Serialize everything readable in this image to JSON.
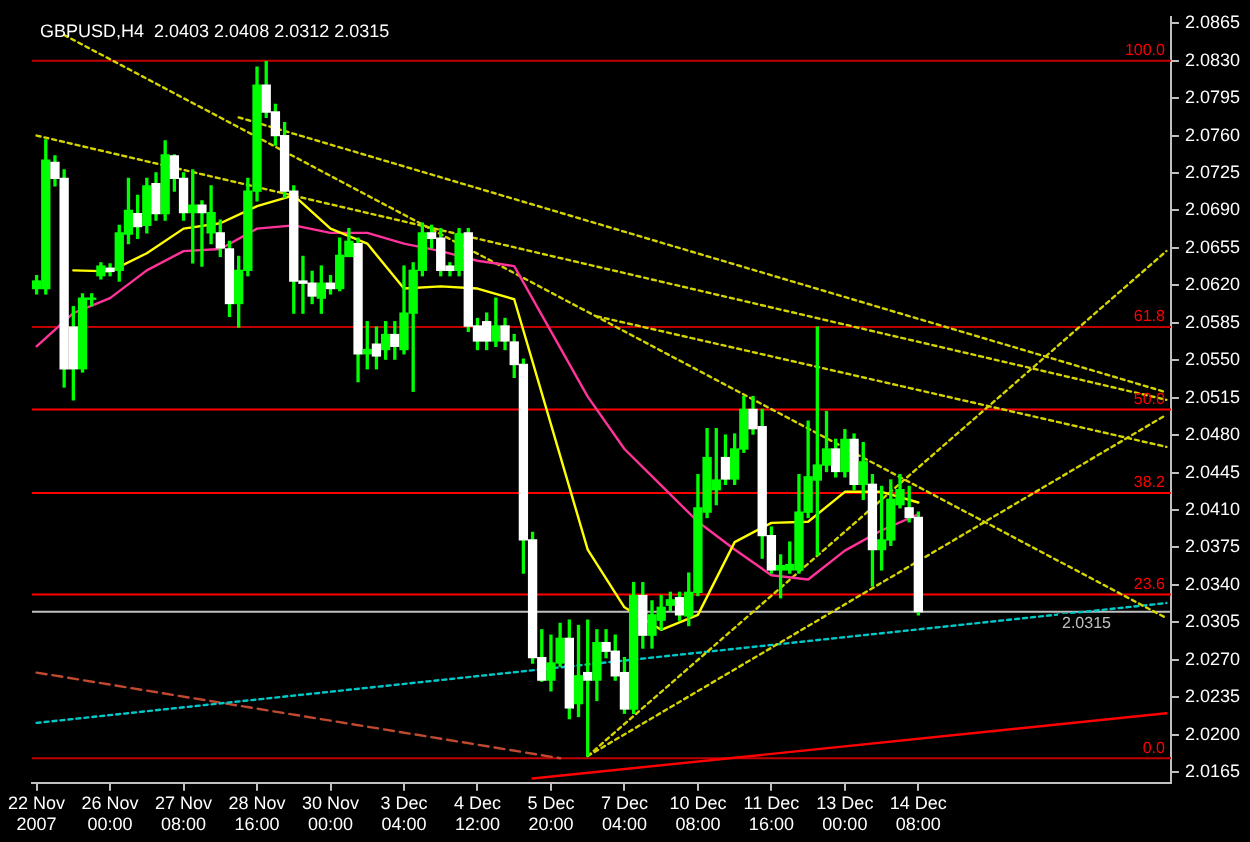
{
  "chart_data": {
    "type": "candlestick",
    "title": "GBPUSD,H4  2.0403 2.0408 2.0312 2.0315",
    "color": "#00ff00",
    "marker": "none",
    "colors": [
      "#00ff00",
      "#00ff00",
      "#ffffff",
      "#ffffff",
      "#ffffff",
      "#00ff00",
      "#00ff00",
      "#00ff00",
      "#ffffff",
      "#00ff00",
      "#00ff00",
      "#ffffff",
      "#00ff00",
      "#ffffff",
      "#00ff00",
      "#ffffff",
      "#ffffff",
      "#00ff00",
      "#ffffff",
      "#00ff00",
      "#ffffff",
      "#ffffff",
      "#00ff00",
      "#00ff00",
      "#00ff00",
      "#ffffff",
      "#ffffff",
      "#ffffff",
      "#ffffff",
      "#ffffff",
      "#ffffff",
      "#00ff00",
      "#ffffff",
      "#00ff00",
      "#00ff00",
      "#ffffff",
      "#00ff00",
      "#ffffff",
      "#00ff00",
      "#ffffff",
      "#00ff00",
      "#00ff00",
      "#00ff00",
      "#ffffff",
      "#ffffff",
      "#ffffff",
      "#00ff00",
      "#ffffff",
      "#ffffff",
      "#ffffff",
      "#00ff00",
      "#ffffff",
      "#ffffff",
      "#ffffff",
      "#ffffff",
      "#ffffff",
      "#00ff00",
      "#00ff00",
      "#ffffff",
      "#00ff00",
      "#ffffff",
      "#00ff00",
      "#ffffff",
      "#ffffff",
      "#ffffff",
      "#00ff00",
      "#ffffff",
      "#00ff00",
      "#00ff00",
      "#00ff00",
      "#ffffff",
      "#00ff00",
      "#00ff00",
      "#00ff00",
      "#00ff00",
      "#ffffff",
      "#00ff00",
      "#00ff00",
      "#ffffff",
      "#ffffff",
      "#ffffff",
      "#00ff00",
      "#00ff00",
      "#00ff00",
      "#00ff00",
      "#00ff00",
      "#00ff00",
      "#ffffff",
      "#00ff00",
      "#ffffff",
      "#00ff00",
      "#ffffff",
      "#00ff00",
      "#00ff00",
      "#00ff00",
      "#ffffff",
      "#ffffff",
      null,
      null,
      null,
      null,
      null,
      null,
      null,
      null,
      null,
      null,
      null,
      null,
      null,
      null,
      null,
      null,
      null,
      null,
      null,
      null,
      null,
      null,
      null,
      null,
      null,
      null,
      null
    ],
    "categories": [
      "22 Nov 2007",
      null,
      null,
      null,
      null,
      null,
      null,
      null,
      "26 Nov 00:00",
      null,
      null,
      null,
      null,
      null,
      null,
      null,
      "27 Nov 08:00",
      null,
      null,
      null,
      null,
      null,
      null,
      null,
      "28 Nov 16:00",
      null,
      null,
      null,
      null,
      null,
      null,
      null,
      "30 Nov 00:00",
      null,
      null,
      null,
      null,
      null,
      null,
      null,
      "3 Dec 04:00",
      null,
      null,
      null,
      null,
      null,
      null,
      null,
      "4 Dec 12:00",
      null,
      null,
      null,
      null,
      null,
      null,
      null,
      "5 Dec 20:00",
      null,
      null,
      null,
      null,
      null,
      null,
      null,
      "7 Dec 04:00",
      null,
      null,
      null,
      null,
      null,
      null,
      null,
      "10 Dec 08:00",
      null,
      null,
      null,
      null,
      null,
      null,
      null,
      "11 Dec 16:00",
      null,
      null,
      null,
      null,
      null,
      null,
      null,
      "13 Dec 00:00",
      null,
      null,
      null,
      null,
      null,
      null,
      null,
      "14 Dec 08:00",
      null,
      null,
      null,
      null,
      null,
      null,
      null,
      null,
      null,
      null,
      null,
      null,
      null,
      null,
      null,
      null,
      null,
      null,
      null,
      null,
      null,
      null,
      null,
      null,
      null,
      null,
      null
    ],
    "ohlc": [
      [
        2.0617,
        2.0629,
        2.0612,
        2.0624
      ],
      [
        2.0617,
        2.0756,
        2.0612,
        2.0737
      ],
      [
        2.0735,
        2.0741,
        2.0713,
        2.072
      ],
      [
        2.072,
        2.0728,
        2.0525,
        2.0542
      ],
      [
        2.0581,
        2.06,
        2.0513,
        2.0542
      ],
      [
        2.0542,
        2.0612,
        2.0539,
        2.0608
      ],
      [
        2.0607,
        2.0612,
        2.0601,
        2.0608
      ],
      [
        2.0629,
        2.0641,
        2.0626,
        2.0638
      ],
      [
        2.0636,
        2.064,
        2.0629,
        2.0633
      ],
      [
        2.0634,
        2.0676,
        2.0624,
        2.0669
      ],
      [
        2.0668,
        2.072,
        2.0659,
        2.069
      ],
      [
        2.0687,
        2.0704,
        2.0664,
        2.0675
      ],
      [
        2.0676,
        2.072,
        2.0669,
        2.0713
      ],
      [
        2.0715,
        2.0725,
        2.0681,
        2.0687
      ],
      [
        2.0687,
        2.0755,
        2.0681,
        2.0742
      ],
      [
        2.0741,
        2.0742,
        2.0708,
        2.072
      ],
      [
        2.072,
        2.0725,
        2.0681,
        2.0688
      ],
      [
        2.0688,
        2.0728,
        2.0641,
        2.0695
      ],
      [
        2.0695,
        2.0699,
        2.0638,
        2.0688
      ],
      [
        2.0669,
        2.0713,
        2.0659,
        2.0688
      ],
      [
        2.0669,
        2.0681,
        2.0647,
        2.0655
      ],
      [
        2.0654,
        2.0661,
        2.0591,
        2.0603
      ],
      [
        2.0603,
        2.0647,
        2.0581,
        2.0634
      ],
      [
        2.0634,
        2.072,
        2.0629,
        2.0708
      ],
      [
        2.0708,
        2.0824,
        2.0699,
        2.0807
      ],
      [
        2.0807,
        2.0829,
        2.0777,
        2.0782
      ],
      [
        2.0782,
        2.0789,
        2.0751,
        2.076
      ],
      [
        2.076,
        2.0772,
        2.0702,
        2.0708
      ],
      [
        2.0708,
        2.0713,
        2.0594,
        2.0624
      ],
      [
        2.0624,
        2.0647,
        2.0594,
        2.0622
      ],
      [
        2.0622,
        2.0633,
        2.0603,
        2.061
      ],
      [
        2.0608,
        2.0638,
        2.0594,
        2.0622
      ],
      [
        2.0622,
        2.0629,
        2.0612,
        2.0617
      ],
      [
        2.0617,
        2.0664,
        2.0615,
        2.0648
      ],
      [
        2.0647,
        2.0673,
        2.0647,
        2.0661
      ],
      [
        2.0659,
        2.0664,
        2.053,
        2.0556
      ],
      [
        2.0556,
        2.0586,
        2.0542,
        2.056
      ],
      [
        2.0565,
        2.0581,
        2.0542,
        2.0554
      ],
      [
        2.056,
        2.0586,
        2.0551,
        2.0574
      ],
      [
        2.0574,
        2.0586,
        2.0551,
        2.0563
      ],
      [
        2.056,
        2.0638,
        2.0556,
        2.0594
      ],
      [
        2.0594,
        2.0641,
        2.0521,
        2.0634
      ],
      [
        2.0634,
        2.0678,
        2.0629,
        2.0669
      ],
      [
        2.0669,
        2.0676,
        2.0655,
        2.0664
      ],
      [
        2.0664,
        2.0673,
        2.0629,
        2.0634
      ],
      [
        2.0638,
        2.0641,
        2.0629,
        2.0634
      ],
      [
        2.0634,
        2.0673,
        2.0629,
        2.0668
      ],
      [
        2.0669,
        2.0673,
        2.0577,
        2.0582
      ],
      [
        2.0582,
        2.0589,
        2.056,
        2.0568
      ],
      [
        2.0586,
        2.0594,
        2.056,
        2.0568
      ],
      [
        2.0568,
        2.0608,
        2.0563,
        2.0582
      ],
      [
        2.0582,
        2.0589,
        2.056,
        2.0568
      ],
      [
        2.0567,
        2.0574,
        2.0534,
        2.0546
      ],
      [
        2.0546,
        2.0551,
        2.0351,
        2.0382
      ],
      [
        2.0382,
        2.0389,
        2.0267,
        2.0272
      ],
      [
        2.0272,
        2.0298,
        2.025,
        2.0251
      ],
      [
        2.0251,
        2.0293,
        2.0241,
        2.0267
      ],
      [
        2.0267,
        2.0304,
        2.0264,
        2.029
      ],
      [
        2.029,
        2.0307,
        2.0215,
        2.0225
      ],
      [
        2.0229,
        2.0302,
        2.0217,
        2.0255
      ],
      [
        2.0258,
        2.0307,
        2.018,
        2.0251
      ],
      [
        2.0251,
        2.0298,
        2.0232,
        2.0286
      ],
      [
        2.0286,
        2.0298,
        2.0272,
        2.0278
      ],
      [
        2.0278,
        2.0293,
        2.0251,
        2.0255
      ],
      [
        2.0258,
        2.0272,
        2.022,
        2.0224
      ],
      [
        2.0224,
        2.0342,
        2.022,
        2.033
      ],
      [
        2.033,
        2.0342,
        2.0281,
        2.0293
      ],
      [
        2.0293,
        2.0325,
        2.0281,
        2.0312
      ],
      [
        2.0307,
        2.033,
        2.0298,
        2.0319
      ],
      [
        2.0321,
        2.0333,
        2.0316,
        2.0326
      ],
      [
        2.0328,
        2.0333,
        2.0307,
        2.0312
      ],
      [
        2.0311,
        2.0351,
        2.0302,
        2.0333
      ],
      [
        2.0333,
        2.0443,
        2.033,
        2.0412
      ],
      [
        2.0408,
        2.0486,
        2.0403,
        2.0459
      ],
      [
        2.0429,
        2.0486,
        2.0415,
        2.0438
      ],
      [
        2.0459,
        2.048,
        2.0434,
        2.0439
      ],
      [
        2.0439,
        2.0481,
        2.0434,
        2.0467
      ],
      [
        2.0467,
        2.0516,
        2.0464,
        2.0504
      ],
      [
        2.0504,
        2.0516,
        2.0481,
        2.0486
      ],
      [
        2.0488,
        2.0504,
        2.0365,
        2.0386
      ],
      [
        2.0386,
        2.0394,
        2.0351,
        2.0354
      ],
      [
        2.0354,
        2.0368,
        2.0328,
        2.0358
      ],
      [
        2.0354,
        2.038,
        2.0351,
        2.0359
      ],
      [
        2.0354,
        2.0443,
        2.0351,
        2.0408
      ],
      [
        2.0408,
        2.0493,
        2.0403,
        2.0441
      ],
      [
        2.0438,
        2.0581,
        2.0368,
        2.0452
      ],
      [
        2.0452,
        2.0502,
        2.0446,
        2.0467
      ],
      [
        2.0467,
        2.0476,
        2.0441,
        2.0446
      ],
      [
        2.0446,
        2.0485,
        2.0441,
        2.0476
      ],
      [
        2.0476,
        2.0481,
        2.0429,
        2.0434
      ],
      [
        2.0434,
        2.0473,
        2.042,
        2.0455
      ],
      [
        2.0434,
        2.0443,
        2.0339,
        2.0373
      ],
      [
        2.0373,
        2.0432,
        2.0354,
        2.0382
      ],
      [
        2.0382,
        2.0438,
        2.0377,
        2.042
      ],
      [
        2.0415,
        2.0443,
        2.0412,
        2.0429
      ],
      [
        2.0412,
        2.0432,
        2.0399,
        2.0403
      ],
      [
        2.0403,
        2.0408,
        2.0312,
        2.0315
      ],
      null,
      null,
      null,
      null,
      null,
      null,
      null,
      null,
      null,
      null,
      null,
      null,
      null,
      null,
      null,
      null,
      null,
      null,
      null,
      null,
      null,
      null,
      null,
      null,
      null,
      null,
      null
    ],
    "series": [
      {
        "type": "line",
        "color": "#ffff00",
        "line_style": "solid",
        "values": [
          null,
          null,
          null,
          null,
          2.0634,
          null,
          null,
          null,
          2.0633,
          null,
          null,
          null,
          2.065,
          null,
          null,
          null,
          2.0673,
          null,
          null,
          null,
          2.0678,
          null,
          null,
          null,
          2.0694,
          null,
          null,
          null,
          2.0704,
          null,
          null,
          null,
          2.0673,
          null,
          null,
          null,
          2.0659,
          null,
          null,
          null,
          2.0617,
          null,
          null,
          null,
          2.0619,
          null,
          null,
          null,
          2.0617,
          null,
          null,
          null,
          2.0607,
          null,
          null,
          null,
          2.049,
          null,
          null,
          null,
          2.0373,
          null,
          null,
          null,
          2.0319,
          null,
          null,
          null,
          2.0298,
          null,
          null,
          null,
          2.0312,
          null,
          null,
          null,
          2.038,
          null,
          null,
          null,
          2.0398,
          null,
          null,
          null,
          2.0399,
          null,
          null,
          null,
          2.0427,
          null,
          null,
          null,
          2.0427,
          null,
          null,
          null,
          2.0417,
          null,
          null,
          null,
          null,
          null,
          null,
          null,
          null,
          null,
          null,
          null,
          null,
          null,
          null,
          null,
          null,
          null,
          null,
          null,
          null,
          null,
          null,
          null,
          null,
          null,
          null,
          null
        ]
      },
      {
        "type": "line",
        "color": "#ff3399",
        "line_style": "solid",
        "values": [
          2.0563,
          null,
          null,
          null,
          2.0594,
          null,
          null,
          null,
          2.0608,
          null,
          null,
          null,
          2.0634,
          null,
          null,
          null,
          2.0652,
          null,
          null,
          null,
          2.0654,
          null,
          null,
          null,
          2.0673,
          null,
          null,
          null,
          2.0676,
          null,
          null,
          null,
          2.0669,
          null,
          null,
          null,
          2.0669,
          null,
          null,
          null,
          2.0659,
          null,
          null,
          null,
          2.0652,
          null,
          null,
          null,
          2.0643,
          null,
          null,
          null,
          2.0638,
          null,
          null,
          null,
          2.0577,
          null,
          null,
          null,
          2.0516,
          null,
          null,
          null,
          2.0467,
          null,
          null,
          null,
          2.0433,
          null,
          null,
          null,
          2.0399,
          null,
          null,
          null,
          2.0373,
          null,
          null,
          null,
          2.0349,
          null,
          null,
          null,
          2.0345,
          null,
          null,
          null,
          2.0372,
          null,
          null,
          null,
          2.0391,
          null,
          null,
          null,
          2.0406,
          null,
          null,
          null,
          null,
          null,
          null,
          null,
          null,
          null,
          null,
          null,
          null,
          null,
          null,
          null,
          null,
          null,
          null,
          null,
          null,
          null,
          null,
          null,
          null,
          null,
          null,
          null
        ]
      },
      {
        "type": "line",
        "color": "#d4d400",
        "line_style": "dotted",
        "values": [
          2.076,
          null,
          null,
          null,
          null,
          null,
          null,
          null,
          null,
          null,
          null,
          null,
          null,
          null,
          null,
          null,
          null,
          null,
          null,
          null,
          null,
          null,
          null,
          null,
          null,
          null,
          null,
          null,
          null,
          null,
          null,
          null,
          null,
          null,
          null,
          null,
          null,
          null,
          null,
          null,
          null,
          null,
          null,
          null,
          null,
          null,
          null,
          null,
          null,
          null,
          null,
          null,
          null,
          null,
          null,
          null,
          null,
          null,
          null,
          null,
          null,
          null,
          null,
          null,
          null,
          null,
          null,
          null,
          null,
          null,
          null,
          null,
          null,
          null,
          null,
          null,
          null,
          null,
          null,
          null,
          null,
          null,
          null,
          null,
          null,
          null,
          null,
          null,
          null,
          null,
          null,
          null,
          null,
          null,
          null,
          null,
          null,
          null,
          null,
          null,
          null,
          null,
          null,
          null,
          null,
          null,
          null,
          null,
          null,
          null,
          null,
          null,
          null,
          null,
          null,
          null,
          null,
          null,
          null,
          null,
          null,
          null,
          null,
          2.0513
        ]
      },
      {
        "type": "line",
        "color": "#d4d400",
        "line_style": "dotted",
        "values": [
          null,
          null,
          null,
          2.0854,
          null,
          null,
          null,
          null,
          null,
          null,
          null,
          null,
          null,
          null,
          null,
          null,
          null,
          null,
          null,
          null,
          null,
          null,
          null,
          null,
          null,
          null,
          null,
          null,
          null,
          null,
          null,
          null,
          null,
          null,
          null,
          null,
          null,
          null,
          null,
          null,
          null,
          null,
          null,
          null,
          null,
          null,
          null,
          null,
          null,
          null,
          null,
          null,
          null,
          null,
          null,
          null,
          null,
          null,
          null,
          null,
          null,
          null,
          null,
          null,
          null,
          null,
          null,
          null,
          null,
          null,
          null,
          null,
          null,
          null,
          null,
          null,
          null,
          null,
          null,
          null,
          null,
          null,
          null,
          null,
          null,
          null,
          null,
          null,
          null,
          null,
          null,
          null,
          null,
          null,
          null,
          null,
          null,
          null,
          null,
          null,
          null,
          null,
          null,
          null,
          null,
          null,
          null,
          null,
          null,
          null,
          null,
          null,
          null,
          null,
          null,
          null,
          null,
          null,
          null,
          null,
          null,
          null,
          null,
          2.0309
        ]
      },
      {
        "type": "line",
        "color": "#d4d400",
        "line_style": "dotted",
        "values": [
          null,
          null,
          null,
          null,
          null,
          null,
          null,
          null,
          null,
          null,
          null,
          null,
          null,
          null,
          null,
          null,
          null,
          null,
          null,
          null,
          null,
          null,
          2.0777,
          null,
          null,
          null,
          null,
          null,
          null,
          null,
          null,
          null,
          null,
          null,
          null,
          null,
          null,
          null,
          null,
          null,
          null,
          null,
          null,
          null,
          null,
          null,
          null,
          null,
          null,
          null,
          null,
          null,
          null,
          null,
          null,
          null,
          null,
          null,
          null,
          null,
          null,
          null,
          null,
          null,
          null,
          null,
          null,
          null,
          null,
          null,
          null,
          null,
          null,
          null,
          null,
          null,
          null,
          null,
          null,
          null,
          null,
          null,
          null,
          null,
          null,
          null,
          null,
          null,
          null,
          null,
          null,
          null,
          null,
          null,
          null,
          null,
          null,
          null,
          null,
          null,
          null,
          null,
          null,
          null,
          null,
          null,
          null,
          null,
          null,
          null,
          null,
          null,
          null,
          null,
          null,
          null,
          null,
          null,
          null,
          null,
          null,
          null,
          null,
          2.052
        ]
      },
      {
        "type": "line",
        "color": "#d4d400",
        "line_style": "dotted",
        "values": [
          null,
          null,
          null,
          null,
          null,
          null,
          null,
          null,
          null,
          null,
          null,
          null,
          null,
          null,
          null,
          null,
          null,
          null,
          null,
          null,
          null,
          null,
          null,
          null,
          null,
          null,
          null,
          null,
          null,
          null,
          null,
          null,
          null,
          null,
          null,
          null,
          null,
          null,
          null,
          null,
          null,
          null,
          null,
          null,
          null,
          null,
          null,
          null,
          null,
          null,
          null,
          null,
          null,
          null,
          null,
          null,
          null,
          null,
          null,
          null,
          null,
          2.0591,
          null,
          null,
          null,
          null,
          null,
          null,
          null,
          null,
          null,
          null,
          null,
          null,
          null,
          null,
          null,
          null,
          null,
          null,
          null,
          null,
          null,
          null,
          null,
          null,
          null,
          null,
          null,
          null,
          null,
          null,
          null,
          null,
          null,
          null,
          null,
          null,
          null,
          null,
          null,
          null,
          null,
          null,
          null,
          null,
          null,
          null,
          null,
          null,
          null,
          null,
          null,
          null,
          null,
          null,
          null,
          null,
          null,
          null,
          null,
          null,
          null,
          2.0469
        ]
      },
      {
        "type": "line",
        "color": "#d4d400",
        "line_style": "dotted",
        "values": [
          null,
          null,
          null,
          null,
          null,
          null,
          null,
          null,
          null,
          null,
          null,
          null,
          null,
          null,
          null,
          null,
          null,
          null,
          null,
          null,
          null,
          null,
          null,
          null,
          null,
          null,
          null,
          null,
          null,
          null,
          null,
          null,
          null,
          null,
          null,
          null,
          null,
          null,
          null,
          null,
          null,
          null,
          null,
          null,
          null,
          null,
          null,
          null,
          null,
          null,
          null,
          null,
          null,
          null,
          null,
          null,
          null,
          null,
          null,
          null,
          2.018,
          null,
          null,
          null,
          null,
          null,
          null,
          null,
          null,
          null,
          null,
          null,
          null,
          null,
          null,
          null,
          null,
          null,
          null,
          null,
          null,
          null,
          null,
          null,
          null,
          null,
          null,
          null,
          null,
          null,
          null,
          null,
          null,
          null,
          null,
          null,
          null,
          null,
          null,
          null,
          null,
          null,
          null,
          null,
          null,
          null,
          null,
          null,
          null,
          null,
          null,
          null,
          null,
          null,
          null,
          null,
          null,
          null,
          null,
          null,
          null,
          null,
          null,
          2.0652
        ]
      },
      {
        "type": "line",
        "color": "#d4d400",
        "line_style": "dotted",
        "values": [
          null,
          null,
          null,
          null,
          null,
          null,
          null,
          null,
          null,
          null,
          null,
          null,
          null,
          null,
          null,
          null,
          null,
          null,
          null,
          null,
          null,
          null,
          null,
          null,
          null,
          null,
          null,
          null,
          null,
          null,
          null,
          null,
          null,
          null,
          null,
          null,
          null,
          null,
          null,
          null,
          null,
          null,
          null,
          null,
          null,
          null,
          null,
          null,
          null,
          null,
          null,
          null,
          null,
          null,
          null,
          null,
          null,
          null,
          null,
          null,
          2.018,
          null,
          null,
          null,
          null,
          null,
          null,
          null,
          null,
          null,
          null,
          null,
          null,
          null,
          null,
          null,
          null,
          null,
          null,
          null,
          null,
          null,
          null,
          null,
          null,
          null,
          null,
          null,
          null,
          null,
          null,
          null,
          null,
          null,
          null,
          null,
          null,
          null,
          null,
          null,
          null,
          null,
          null,
          null,
          null,
          null,
          null,
          null,
          null,
          null,
          null,
          null,
          null,
          null,
          null,
          null,
          null,
          null,
          null,
          null,
          null,
          null,
          null,
          2.0499
        ]
      },
      {
        "type": "line",
        "color": "#00c8c8",
        "line_style": "dotted",
        "values": [
          2.0211,
          null,
          null,
          null,
          null,
          null,
          null,
          null,
          null,
          null,
          null,
          null,
          null,
          null,
          null,
          null,
          null,
          null,
          null,
          null,
          null,
          null,
          null,
          null,
          null,
          null,
          null,
          null,
          null,
          null,
          null,
          null,
          null,
          null,
          null,
          null,
          null,
          null,
          null,
          null,
          null,
          null,
          null,
          null,
          null,
          null,
          null,
          null,
          null,
          null,
          null,
          null,
          null,
          null,
          null,
          null,
          null,
          null,
          null,
          null,
          null,
          null,
          null,
          null,
          null,
          null,
          null,
          null,
          null,
          null,
          null,
          null,
          null,
          null,
          null,
          null,
          null,
          null,
          null,
          null,
          null,
          null,
          null,
          null,
          null,
          null,
          null,
          null,
          null,
          null,
          null,
          null,
          null,
          null,
          null,
          null,
          null,
          null,
          null,
          null,
          null,
          null,
          null,
          null,
          null,
          null,
          null,
          null,
          null,
          null,
          null,
          null,
          null,
          null,
          null,
          null,
          null,
          null,
          null,
          null,
          null,
          null,
          null,
          2.0323
        ]
      },
      {
        "type": "line",
        "color": "#c04a30",
        "line_style": "dashed",
        "values": [
          2.0258,
          null,
          null,
          null,
          null,
          null,
          null,
          null,
          null,
          null,
          null,
          null,
          null,
          null,
          null,
          null,
          null,
          null,
          null,
          null,
          null,
          null,
          null,
          null,
          null,
          null,
          null,
          null,
          null,
          null,
          null,
          null,
          null,
          null,
          null,
          null,
          null,
          null,
          null,
          null,
          null,
          null,
          null,
          null,
          null,
          null,
          null,
          null,
          null,
          null,
          null,
          null,
          null,
          null,
          null,
          null,
          null,
          2.0178,
          null,
          null,
          null,
          null,
          null,
          null,
          null,
          null,
          null,
          null,
          null,
          null,
          null,
          null,
          null,
          null,
          null,
          null,
          null,
          null,
          null,
          null,
          null,
          null,
          null,
          null,
          null,
          null,
          null,
          null,
          null,
          null,
          null,
          null,
          null,
          null,
          null,
          null,
          null,
          null,
          null,
          null,
          null,
          null,
          null,
          null,
          null,
          null,
          null,
          null,
          null,
          null,
          null,
          null,
          null,
          null,
          null,
          null,
          null,
          null,
          null,
          null,
          null,
          null,
          null,
          null
        ]
      },
      {
        "type": "line",
        "color": "#ff0000",
        "line_style": "solid",
        "values": [
          null,
          null,
          null,
          null,
          null,
          null,
          null,
          null,
          null,
          null,
          null,
          null,
          null,
          null,
          null,
          null,
          null,
          null,
          null,
          null,
          null,
          null,
          null,
          null,
          null,
          null,
          null,
          null,
          null,
          null,
          null,
          null,
          null,
          null,
          null,
          null,
          null,
          null,
          null,
          null,
          null,
          null,
          null,
          null,
          null,
          null,
          null,
          null,
          null,
          null,
          null,
          null,
          null,
          null,
          2.0159,
          null,
          null,
          null,
          null,
          null,
          null,
          null,
          null,
          null,
          null,
          null,
          null,
          null,
          null,
          null,
          null,
          null,
          null,
          null,
          null,
          null,
          null,
          null,
          null,
          null,
          null,
          null,
          null,
          null,
          null,
          null,
          null,
          null,
          null,
          null,
          null,
          null,
          null,
          null,
          null,
          null,
          null,
          null,
          null,
          null,
          null,
          null,
          null,
          null,
          null,
          null,
          null,
          null,
          null,
          null,
          null,
          null,
          null,
          null,
          null,
          null,
          null,
          null,
          null,
          null,
          null,
          null,
          null,
          2.022
        ]
      }
    ],
    "ylim": [
      2.0155,
      2.0871
    ],
    "yticks": [
      2.0165,
      {
        "value": 2.02,
        "label": "2.0200"
      },
      2.0235,
      {
        "value": 2.027,
        "label": "2.0270"
      },
      2.0305,
      {
        "value": 2.034,
        "label": "2.0340"
      },
      2.0375,
      {
        "value": 2.041,
        "label": "2.0410"
      },
      2.0445,
      {
        "value": 2.048,
        "label": "2.0480"
      },
      2.0515,
      {
        "value": 2.055,
        "label": "2.0550"
      },
      2.0585,
      {
        "value": 2.062,
        "label": "2.0620"
      },
      2.0655,
      {
        "value": 2.069,
        "label": "2.0690"
      },
      2.0725,
      {
        "value": 2.076,
        "label": "2.0760"
      },
      2.0795,
      {
        "value": 2.083,
        "label": "2.0830"
      },
      2.0865
    ],
    "annotations": [
      {
        "text": "100.0",
        "y": 2.083
      },
      {
        "text": "61.8",
        "y": 2.0581
      },
      {
        "text": "50.0",
        "y": 2.0504
      },
      {
        "text": "38.2",
        "y": 2.0426
      },
      {
        "text": "23.6",
        "y": 2.0331
      },
      {
        "text": "0.0",
        "y": 2.0178
      }
    ],
    "ref_lines": [
      {
        "axis": "y",
        "value": 2.083,
        "color": "#c00000"
      },
      {
        "axis": "y",
        "value": 2.0581,
        "color": "#c00000"
      },
      {
        "axis": "y",
        "value": 2.0504,
        "color": "#ff0000"
      },
      {
        "axis": "y",
        "value": 2.0426,
        "color": "#ff0000"
      },
      {
        "axis": "y",
        "value": 2.0331,
        "color": "#ff0000"
      },
      {
        "axis": "y",
        "value": 2.0178,
        "color": "#c00000"
      },
      {
        "axis": "y",
        "value": 2.0315,
        "label": "2.0315",
        "color": "#c0c0c0"
      }
    ]
  }
}
